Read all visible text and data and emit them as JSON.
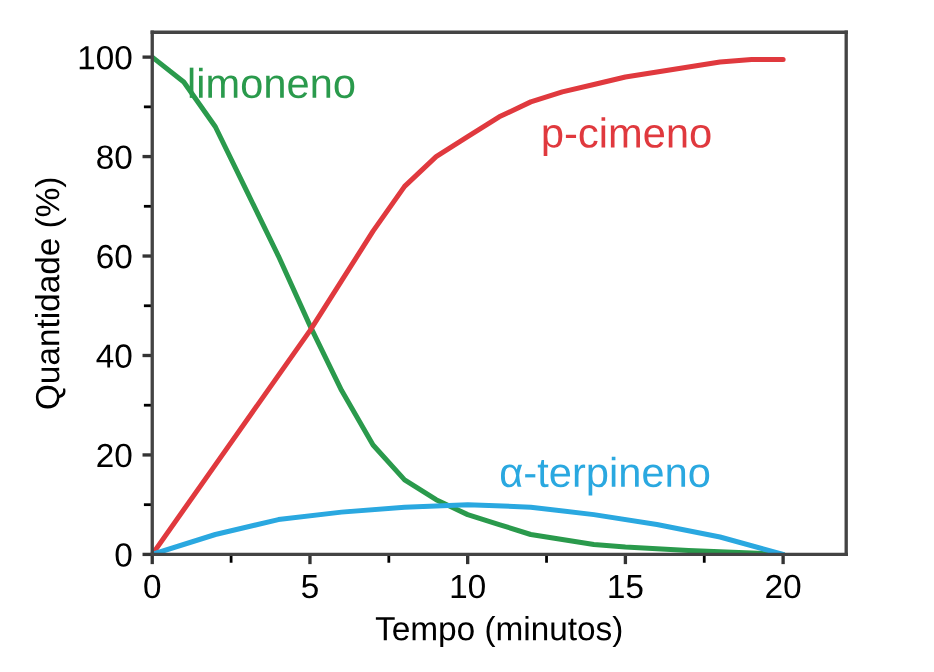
{
  "chart_data": {
    "type": "line",
    "xlabel": "Tempo (minutos)",
    "ylabel": "Quantidade (%)",
    "xlim": [
      0,
      22
    ],
    "ylim": [
      0,
      105
    ],
    "xticks": [
      0,
      5,
      10,
      15,
      20
    ],
    "yticks": [
      0,
      20,
      40,
      60,
      80,
      100
    ],
    "grid": false,
    "legend": false,
    "marker": "none",
    "line_style": "solid",
    "series": [
      {
        "name": "limoneno",
        "color": "#2a9a4c",
        "x": [
          0,
          1,
          2,
          3,
          4,
          5,
          6,
          7,
          8,
          9,
          10,
          11,
          12,
          13,
          14,
          15,
          17,
          20
        ],
        "values": [
          100,
          95,
          86,
          73,
          60,
          46,
          33,
          22,
          15,
          11,
          8,
          6,
          4,
          3,
          2,
          1.5,
          0.8,
          0
        ]
      },
      {
        "name": "p-cimeno",
        "color": "#e0393e",
        "x": [
          0,
          2,
          4,
          5,
          6,
          7,
          8,
          9,
          10,
          11,
          12,
          13,
          14,
          15,
          16,
          17,
          18,
          19,
          20
        ],
        "values": [
          0,
          18,
          36,
          45,
          55,
          65,
          74,
          80,
          84,
          88,
          91,
          93,
          94.5,
          96,
          97,
          98,
          99,
          99.5,
          99.5
        ]
      },
      {
        "name": "α-terpineno",
        "color": "#2aa8e0",
        "x": [
          0,
          2,
          4,
          6,
          8,
          10,
          12,
          14,
          16,
          18,
          20
        ],
        "values": [
          0,
          4,
          7,
          8.5,
          9.5,
          10,
          9.5,
          8,
          6,
          3.5,
          0
        ]
      }
    ]
  }
}
